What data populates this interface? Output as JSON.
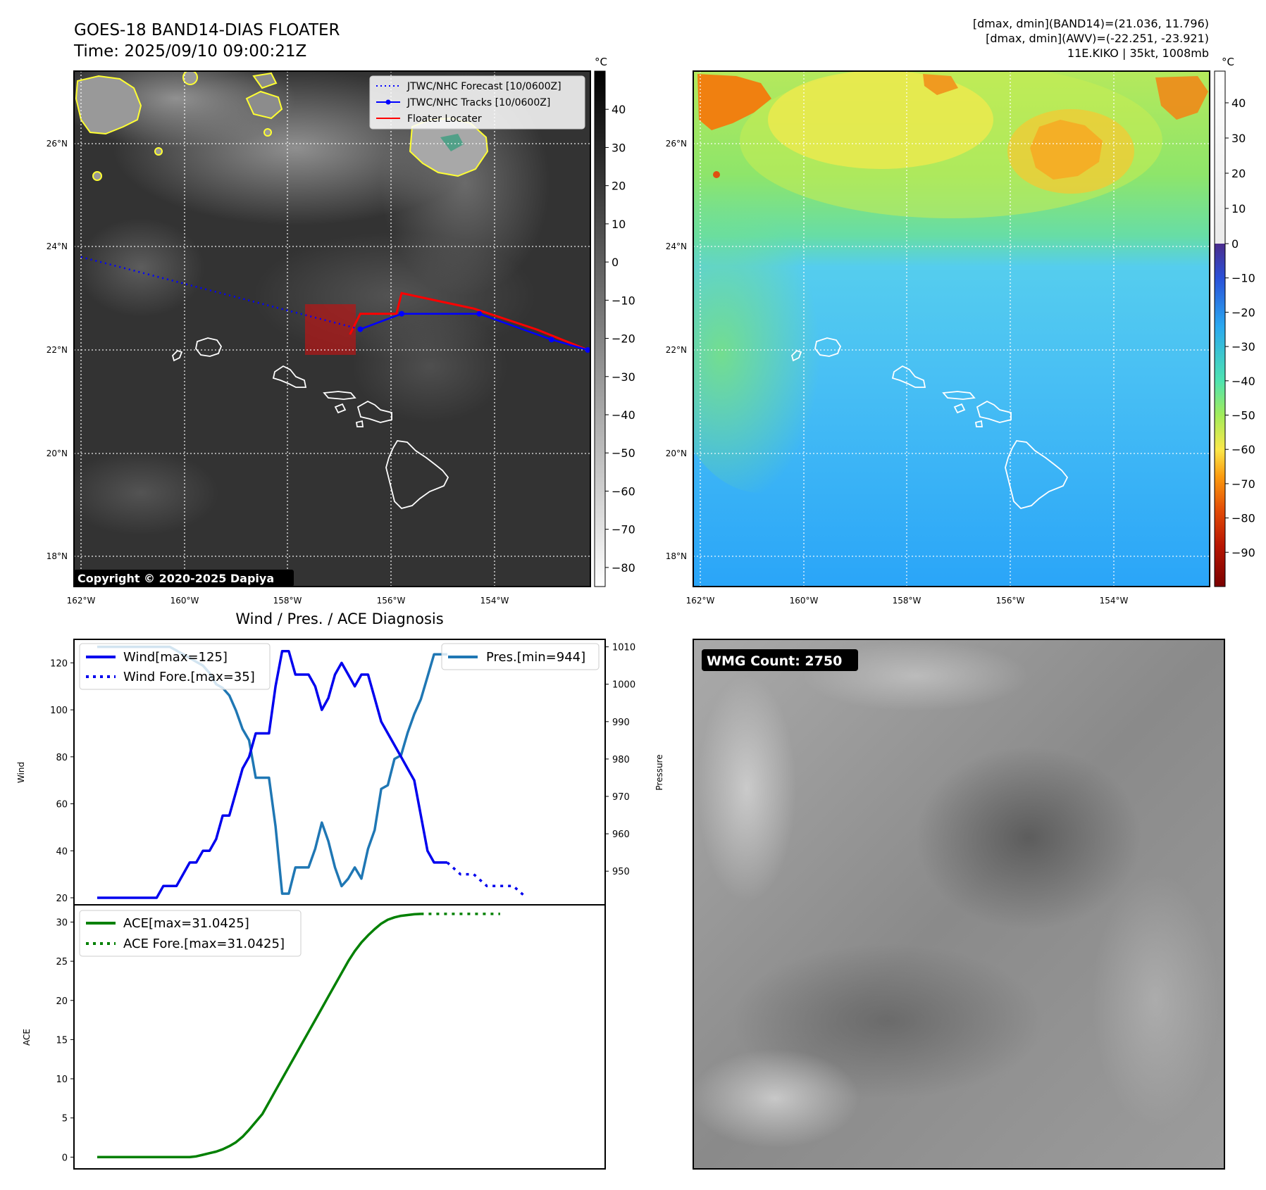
{
  "header": {
    "title_line1": "GOES-18 BAND14-DIAS FLOATER",
    "title_line2": "Time: 2025/09/10 09:00:21Z",
    "info_line1": "[dmax, dmin](BAND14)=(21.036, 11.796)",
    "info_line2": "[dmax, dmin](AWV)=(-22.251, -23.921)",
    "info_line3": "11E.KIKO | 35kt, 1008mb"
  },
  "colors": {
    "wind": "#0000ee",
    "pressure": "#1f77b4",
    "ace": "#008000",
    "forecast_track": "#0000ff",
    "observed_track": "#0000ff",
    "floater_locater": "#ff0000",
    "cloud_contour": "#ffff33",
    "land_outline": "#ffffff"
  },
  "maps": {
    "lon_labels": [
      "162°W",
      "160°W",
      "158°W",
      "156°W",
      "154°W"
    ],
    "lat_labels": [
      "26°N",
      "24°N",
      "22°N",
      "20°N",
      "18°N"
    ],
    "copyright": "Copyright © 2020-2025 Dapiya",
    "legend": {
      "forecast": "JTWC/NHC Forecast [10/0600Z]",
      "tracks": "JTWC/NHC Tracks [10/0600Z]",
      "floater": "Floater Locater"
    },
    "band14_colorbar": {
      "unit": "°C",
      "ticks": [
        "40",
        "30",
        "20",
        "10",
        "0",
        "−10",
        "−20",
        "−30",
        "−40",
        "−50",
        "−60",
        "−70",
        "−80"
      ]
    },
    "awv_colorbar": {
      "unit": "°C",
      "ticks": [
        "40",
        "30",
        "20",
        "10",
        "0",
        "−10",
        "−20",
        "−30",
        "−40",
        "−50",
        "−60",
        "−70",
        "−80",
        "−90"
      ]
    },
    "forecast_track": [
      [
        -162.0,
        23.8
      ],
      [
        -156.6,
        22.4
      ]
    ],
    "observed_track": [
      [
        -156.6,
        22.4
      ],
      [
        -155.8,
        22.7
      ],
      [
        -154.3,
        22.7
      ],
      [
        -152.9,
        22.2
      ],
      [
        -152.2,
        22.0
      ]
    ],
    "floater_line": [
      [
        -156.8,
        22.3
      ],
      [
        -156.6,
        22.7
      ],
      [
        -155.9,
        22.7
      ],
      [
        -155.8,
        23.1
      ],
      [
        -154.4,
        22.8
      ],
      [
        -153.2,
        22.4
      ],
      [
        -152.2,
        22.0
      ]
    ]
  },
  "wmg": {
    "label": "WMG Count: 2750"
  },
  "chart_data": [
    {
      "type": "line",
      "title": "Wind / Pres. / ACE Diagnosis",
      "ylabel": "Wind",
      "ylabel_right": "Pressure",
      "ylim": [
        17,
        130
      ],
      "ylim_right": [
        941,
        1012
      ],
      "yticks": [
        "20",
        "40",
        "60",
        "80",
        "100",
        "120"
      ],
      "yticks_right": [
        "950",
        "960",
        "970",
        "980",
        "990",
        "1000",
        "1010"
      ],
      "series": [
        {
          "name": "Wind[max=125]",
          "style": "solid",
          "values": [
            20,
            20,
            20,
            20,
            20,
            20,
            20,
            20,
            20,
            20,
            25,
            25,
            25,
            30,
            35,
            35,
            40,
            40,
            45,
            55,
            55,
            65,
            75,
            80,
            90,
            90,
            90,
            110,
            125,
            125,
            115,
            115,
            115,
            110,
            100,
            105,
            115,
            120,
            115,
            110,
            115,
            115,
            105,
            95,
            90,
            85,
            80,
            75,
            70,
            55,
            40,
            35,
            35,
            35
          ]
        },
        {
          "name": "Wind Fore.[max=35]",
          "style": "dotted",
          "x": [
            53,
            55,
            57,
            59,
            61,
            63,
            65
          ],
          "values": [
            35,
            30,
            30,
            25,
            25,
            25,
            20
          ]
        },
        {
          "name": "Pres.[min=944]",
          "axis": "right",
          "style": "solid",
          "values": [
            1010,
            1010,
            1010,
            1010,
            1010,
            1010,
            1010,
            1010,
            1010,
            1010,
            1010,
            1010,
            1009,
            1008,
            1007,
            1006,
            1005,
            1003,
            1000,
            999,
            997,
            993,
            988,
            985,
            975,
            975,
            975,
            962,
            944,
            944,
            951,
            951,
            951,
            956,
            963,
            958,
            951,
            946,
            948,
            951,
            948,
            956,
            961,
            972,
            973,
            980,
            981,
            987,
            992,
            996,
            1002,
            1008,
            1008,
            1008
          ]
        }
      ]
    },
    {
      "type": "line",
      "ylabel": "ACE",
      "ylim": [
        -1.5,
        32.2
      ],
      "yticks": [
        "0",
        "5",
        "10",
        "15",
        "20",
        "25",
        "30"
      ],
      "series": [
        {
          "name": "ACE[max=31.0425]",
          "style": "solid",
          "values": [
            0,
            0,
            0,
            0,
            0,
            0,
            0,
            0,
            0,
            0,
            0,
            0,
            0,
            0,
            0,
            0.1,
            0.3,
            0.5,
            0.7,
            1.0,
            1.4,
            1.9,
            2.6,
            3.5,
            4.5,
            5.5,
            7.0,
            8.5,
            10.0,
            11.5,
            13.0,
            14.5,
            16.0,
            17.5,
            19.0,
            20.5,
            22.0,
            23.5,
            25.0,
            26.3,
            27.4,
            28.3,
            29.1,
            29.8,
            30.3,
            30.6,
            30.8,
            30.9,
            31.0,
            31.0425
          ]
        },
        {
          "name": "ACE Fore.[max=31.0425]",
          "style": "dotted",
          "x": [
            49,
            61
          ],
          "values": [
            31.0425,
            31.0425
          ]
        }
      ]
    }
  ]
}
